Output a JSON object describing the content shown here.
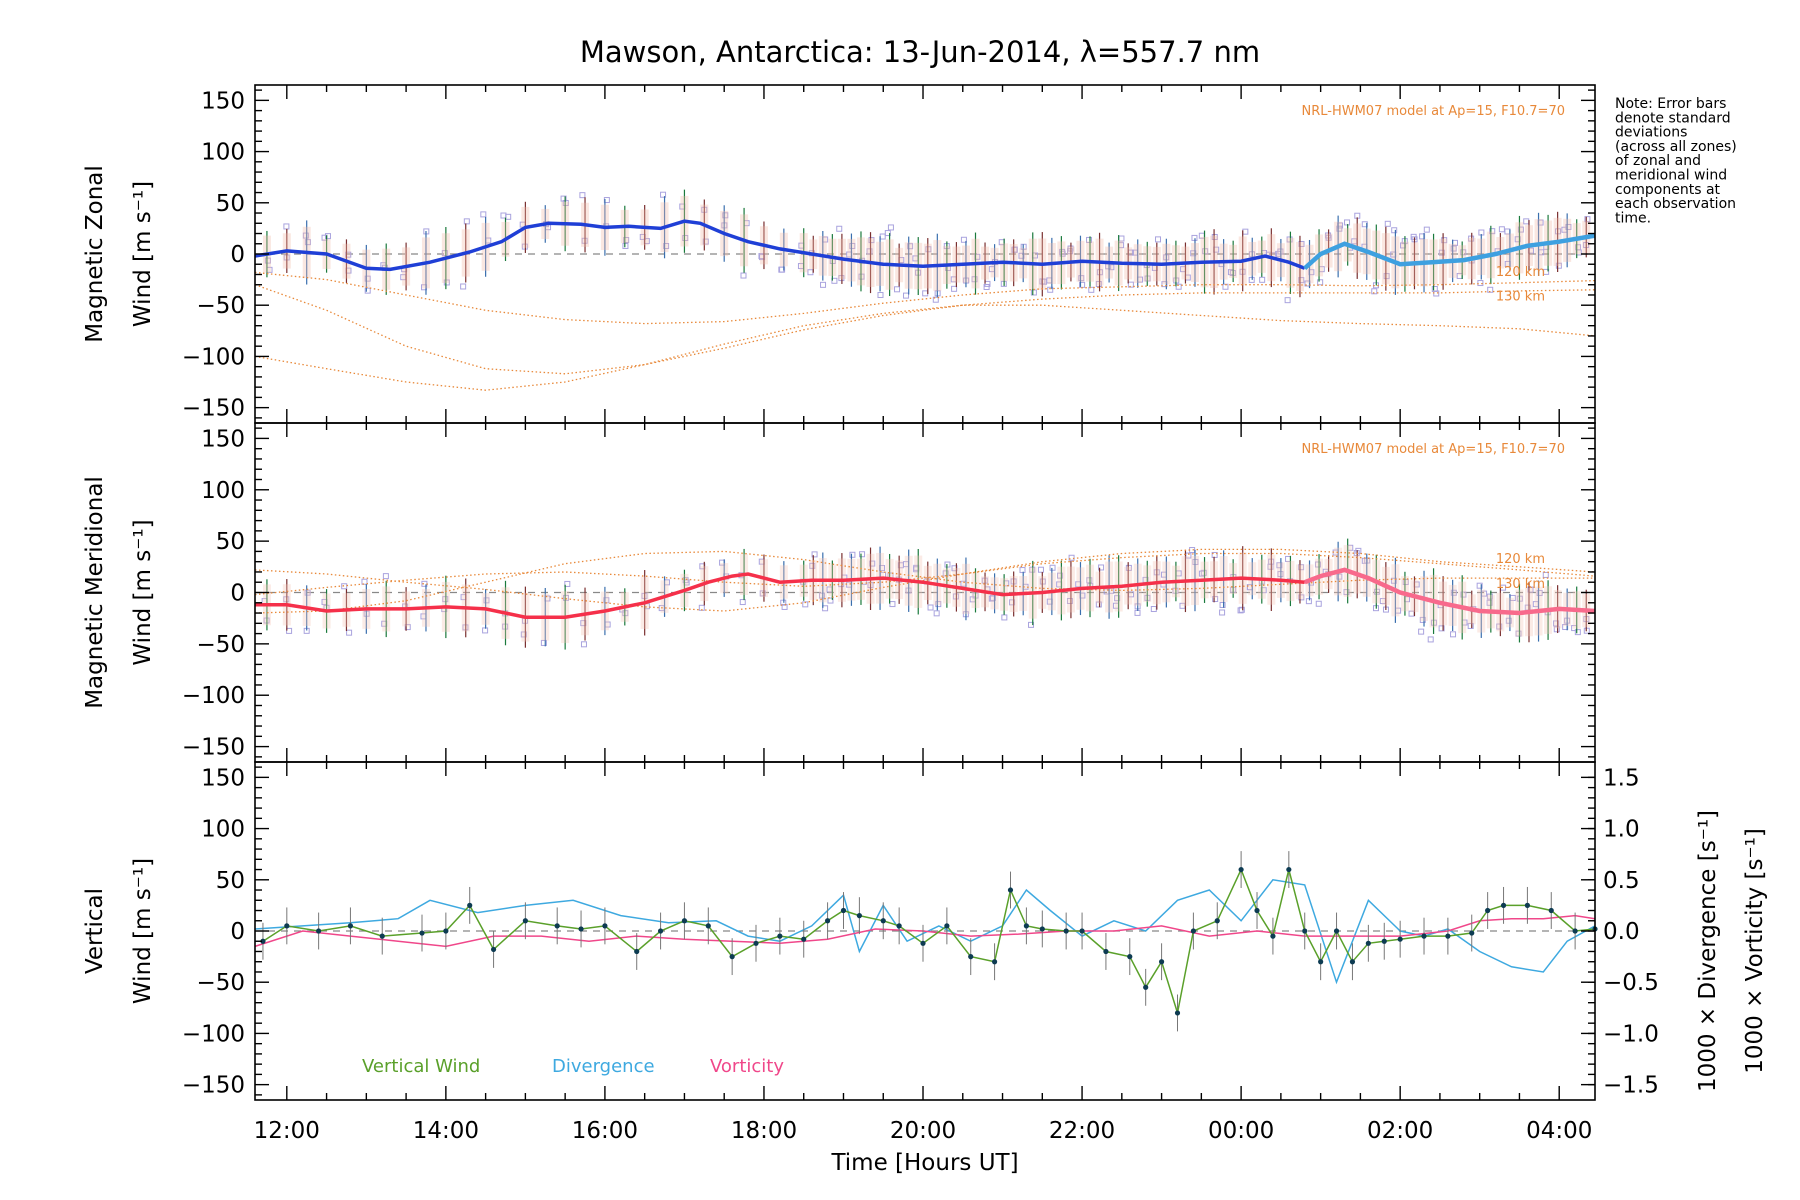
{
  "title": "Mawson, Antarctica: 13-Jun-2014, λ=557.7 nm",
  "note": [
    "Note: Error bars",
    "denote standard",
    "deviations",
    "(across all zones)",
    "of zonal and",
    "meridional wind",
    "components at",
    "each observation",
    "time."
  ],
  "xaxis": {
    "label": "Time [Hours UT]",
    "range_hours": [
      11.6,
      28.45
    ],
    "ticks": [
      12,
      14,
      16,
      18,
      20,
      22,
      24,
      26,
      28
    ],
    "tick_labels": [
      "12:00",
      "14:00",
      "16:00",
      "18:00",
      "20:00",
      "22:00",
      "00:00",
      "02:00",
      "04:00"
    ]
  },
  "colors": {
    "zonal": "#1f3fd6",
    "zonal_late": "#3ea0e0",
    "meridional": "#f5304a",
    "meridional_late": "#f86a8c",
    "vertical": "#5aa02a",
    "divergence": "#3ea9e0",
    "vorticity": "#f0478a",
    "model": "#e8893a",
    "scatter": "#a9a3de",
    "points": "#0d3b52"
  },
  "chart_data": [
    {
      "type": "line",
      "panel": "zonal",
      "ylabel_line1": "Magnetic Zonal",
      "ylabel_line2": "Wind [m s⁻¹]",
      "ylim": [
        -165,
        165
      ],
      "yticks": [
        -150,
        -100,
        -50,
        0,
        50,
        100,
        150
      ],
      "grid": false,
      "model_label": "NRL-HWM07 model at Ap=15, F10.7=70",
      "model_level_labels": [
        "120 km",
        "130 km"
      ],
      "series": [
        {
          "x": [
            11.6,
            12.0,
            12.5,
            13.0,
            13.3,
            13.8,
            14.3,
            14.7,
            15.0,
            15.3,
            15.7,
            16.0,
            16.3,
            16.7,
            17.0,
            17.2,
            17.5,
            17.8,
            18.2,
            18.6,
            19.0,
            19.5,
            20.0,
            20.5,
            21.0,
            21.5,
            22.0,
            22.5,
            23.0,
            23.5,
            24.0,
            24.3,
            24.6,
            24.8,
            25.0,
            25.3,
            25.6,
            26.0,
            26.4,
            26.8,
            27.2,
            27.6,
            28.0,
            28.45
          ],
          "y": [
            -2,
            3,
            0,
            -14,
            -15,
            -8,
            2,
            12,
            26,
            30,
            29,
            26,
            27,
            25,
            32,
            30,
            20,
            12,
            5,
            0,
            -5,
            -10,
            -12,
            -10,
            -8,
            -10,
            -7,
            -9,
            -10,
            -8,
            -7,
            -2,
            -8,
            -14,
            0,
            10,
            2,
            -10,
            -8,
            -6,
            0,
            8,
            12,
            18
          ]
        },
        {
          "name": "120 km",
          "x": [
            11.6,
            12.5,
            13.5,
            14.5,
            15.5,
            16.5,
            17.5,
            18.5,
            19.5,
            20.5,
            21.5,
            22.5,
            23.5,
            24.5,
            25.5,
            26.5,
            27.5,
            28.45
          ],
          "y": [
            -18,
            -25,
            -40,
            -55,
            -64,
            -68,
            -66,
            -58,
            -48,
            -40,
            -34,
            -32,
            -30,
            -30,
            -31,
            -30,
            -28,
            -26
          ]
        },
        {
          "name": "130 km",
          "x": [
            11.6,
            12.5,
            13.5,
            14.5,
            15.5,
            16.5,
            17.5,
            18.5,
            19.5,
            20.5,
            21.5,
            22.5,
            23.5,
            24.5,
            25.5,
            26.5,
            27.5,
            28.45
          ],
          "y": [
            -30,
            -55,
            -90,
            -112,
            -117,
            -108,
            -92,
            -74,
            -60,
            -50,
            -44,
            -40,
            -38,
            -38,
            -38,
            -38,
            -36,
            -35
          ]
        },
        {
          "x": [
            11.6,
            12.5,
            13.5,
            14.5,
            15.5,
            16.5,
            17.5,
            18.5,
            19.5,
            20.5,
            21.5,
            22.5,
            23.5,
            24.5,
            25.5,
            26.5,
            27.5,
            28.45
          ],
          "y": [
            -100,
            -112,
            -125,
            -133,
            -125,
            -108,
            -88,
            -70,
            -58,
            -50,
            -50,
            -55,
            -60,
            -65,
            -68,
            -70,
            -73,
            -80
          ]
        }
      ]
    },
    {
      "type": "line",
      "panel": "meridional",
      "ylabel_line1": "Magnetic Meridional",
      "ylabel_line2": "Wind [m s⁻¹]",
      "ylim": [
        -165,
        165
      ],
      "yticks": [
        -150,
        -100,
        -50,
        0,
        50,
        100,
        150
      ],
      "grid": false,
      "model_label": "NRL-HWM07 model at Ap=15, F10.7=70",
      "model_level_labels": [
        "120 km",
        "130 km"
      ],
      "series": [
        {
          "x": [
            11.6,
            12.0,
            12.5,
            13.0,
            13.5,
            14.0,
            14.5,
            15.0,
            15.5,
            16.0,
            16.5,
            17.0,
            17.3,
            17.6,
            17.8,
            18.2,
            18.6,
            19.0,
            19.5,
            20.0,
            20.5,
            21.0,
            21.5,
            22.0,
            22.5,
            23.0,
            23.5,
            24.0,
            24.5,
            24.8,
            25.0,
            25.3,
            25.6,
            26.0,
            26.5,
            27.0,
            27.5,
            28.0,
            28.45
          ],
          "y": [
            -12,
            -12,
            -18,
            -16,
            -16,
            -14,
            -16,
            -24,
            -24,
            -18,
            -10,
            2,
            10,
            16,
            18,
            10,
            12,
            12,
            14,
            10,
            4,
            -2,
            0,
            4,
            6,
            10,
            12,
            14,
            12,
            10,
            16,
            22,
            14,
            0,
            -10,
            -18,
            -20,
            -16,
            -18
          ]
        },
        {
          "name": "120 km",
          "x": [
            11.6,
            12.5,
            13.5,
            14.5,
            15.5,
            16.5,
            17.5,
            18.5,
            19.5,
            20.5,
            21.5,
            22.5,
            23.5,
            24.5,
            25.5,
            26.5,
            27.5,
            28.45
          ],
          "y": [
            22,
            18,
            10,
            3,
            -6,
            -14,
            -18,
            -10,
            5,
            18,
            30,
            38,
            42,
            42,
            38,
            30,
            25,
            20
          ]
        },
        {
          "name": "130 km",
          "x": [
            11.6,
            12.5,
            13.5,
            14.5,
            15.5,
            16.5,
            17.5,
            18.5,
            19.5,
            20.5,
            21.5,
            22.5,
            23.5,
            24.5,
            25.5,
            26.5,
            27.5,
            28.45
          ],
          "y": [
            -20,
            -18,
            -8,
            10,
            28,
            38,
            40,
            32,
            20,
            10,
            4,
            2,
            4,
            8,
            12,
            14,
            14,
            14
          ]
        },
        {
          "x": [
            11.6,
            12.5,
            13.5,
            14.5,
            15.5,
            16.5,
            17.5,
            18.5,
            19.5,
            20.5,
            21.5,
            22.5,
            23.5,
            24.5,
            25.5,
            26.5,
            27.5,
            28.45
          ],
          "y": [
            -2,
            5,
            12,
            18,
            20,
            16,
            10,
            6,
            10,
            18,
            28,
            34,
            38,
            38,
            34,
            28,
            22,
            16
          ]
        }
      ]
    },
    {
      "type": "line",
      "panel": "vertical",
      "ylabel_line1": "Vertical",
      "ylabel_line2": "Wind [m s⁻¹]",
      "ylim": [
        -165,
        165
      ],
      "yticks": [
        -150,
        -100,
        -50,
        0,
        50,
        100,
        150
      ],
      "y2_label_div": "1000 × Divergence [s⁻¹]",
      "y2_label_vor": "1000 × Vorticity [s⁻¹]",
      "y2lim": [
        -1.65,
        1.65
      ],
      "y2ticks": [
        -1.5,
        -1.0,
        -0.5,
        0.0,
        0.5,
        1.0,
        1.5
      ],
      "y2tick_labels": [
        "−1.5",
        "−1.0",
        "−0.5",
        "0.0",
        "0.5",
        "1.0",
        "1.5"
      ],
      "legend": [
        "Vertical Wind",
        "Divergence",
        "Vorticity"
      ],
      "legend_position": "bottom-left",
      "grid": false,
      "series": [
        {
          "name": "Vertical Wind",
          "x": [
            11.7,
            12.0,
            12.4,
            12.8,
            13.2,
            13.7,
            14.0,
            14.3,
            14.6,
            15.0,
            15.4,
            15.7,
            16.0,
            16.4,
            16.7,
            17.0,
            17.3,
            17.6,
            17.9,
            18.2,
            18.5,
            18.8,
            19.0,
            19.2,
            19.5,
            19.7,
            20.0,
            20.3,
            20.6,
            20.9,
            21.1,
            21.3,
            21.5,
            21.8,
            22.0,
            22.3,
            22.6,
            22.8,
            23.0,
            23.2,
            23.4,
            23.7,
            24.0,
            24.2,
            24.4,
            24.6,
            24.8,
            25.0,
            25.2,
            25.4,
            25.6,
            25.8,
            26.0,
            26.3,
            26.6,
            26.9,
            27.1,
            27.3,
            27.6,
            27.9,
            28.2,
            28.45
          ],
          "y": [
            -10,
            5,
            0,
            5,
            -5,
            -2,
            0,
            25,
            -18,
            10,
            5,
            2,
            5,
            -20,
            0,
            10,
            5,
            -25,
            -12,
            -5,
            -8,
            10,
            20,
            15,
            10,
            5,
            -12,
            5,
            -25,
            -30,
            40,
            5,
            2,
            0,
            0,
            -20,
            -25,
            -55,
            -30,
            -80,
            0,
            10,
            60,
            20,
            -5,
            60,
            0,
            -30,
            0,
            -30,
            -12,
            -10,
            -8,
            -5,
            -5,
            -2,
            20,
            25,
            25,
            20,
            0,
            2
          ]
        },
        {
          "name": "Divergence",
          "x": [
            11.6,
            12.2,
            12.8,
            13.4,
            13.8,
            14.4,
            15.0,
            15.6,
            16.2,
            16.8,
            17.4,
            17.8,
            18.2,
            18.6,
            19.0,
            19.2,
            19.5,
            19.8,
            20.2,
            20.6,
            21.0,
            21.3,
            21.6,
            22.0,
            22.4,
            22.8,
            23.2,
            23.6,
            24.0,
            24.4,
            24.8,
            25.2,
            25.6,
            26.0,
            26.3,
            26.6,
            27.0,
            27.4,
            27.8,
            28.1,
            28.45
          ],
          "y": [
            0.02,
            0.05,
            0.08,
            0.12,
            0.3,
            0.18,
            0.25,
            0.3,
            0.15,
            0.08,
            0.1,
            -0.05,
            -0.1,
            0.05,
            0.35,
            -0.2,
            0.25,
            -0.1,
            0.05,
            -0.1,
            0.05,
            0.4,
            0.2,
            -0.05,
            0.1,
            0.0,
            0.3,
            0.4,
            0.1,
            0.5,
            0.45,
            -0.5,
            0.3,
            0.0,
            -0.05,
            0.02,
            -0.2,
            -0.35,
            -0.4,
            -0.1,
            0.05
          ]
        },
        {
          "name": "Vorticity",
          "x": [
            11.6,
            12.2,
            12.8,
            13.4,
            14.0,
            14.6,
            15.2,
            15.8,
            16.4,
            17.0,
            17.6,
            18.2,
            18.8,
            19.4,
            20.0,
            20.6,
            21.2,
            21.8,
            22.4,
            23.0,
            23.6,
            24.2,
            24.8,
            25.4,
            26.0,
            26.6,
            27.0,
            27.4,
            27.8,
            28.2,
            28.45
          ],
          "y": [
            -0.15,
            0.0,
            -0.05,
            -0.1,
            -0.15,
            -0.05,
            -0.05,
            -0.1,
            -0.05,
            -0.08,
            -0.1,
            -0.12,
            -0.08,
            0.02,
            0.0,
            -0.05,
            -0.03,
            0.0,
            0.0,
            0.05,
            -0.05,
            0.0,
            -0.05,
            -0.05,
            -0.05,
            0.0,
            0.1,
            0.12,
            0.12,
            0.15,
            0.12
          ]
        }
      ]
    }
  ]
}
